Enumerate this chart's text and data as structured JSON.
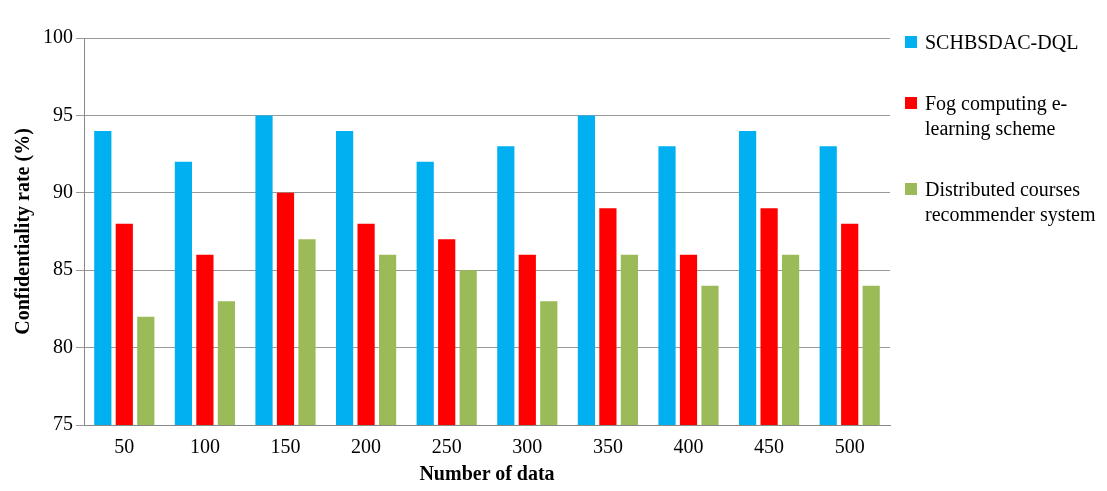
{
  "chart_data": {
    "type": "bar",
    "xlabel": "Number of data",
    "ylabel": "Confidentiality rate (%)",
    "categories": [
      "50",
      "100",
      "150",
      "200",
      "250",
      "300",
      "350",
      "400",
      "450",
      "500"
    ],
    "series": [
      {
        "name": "SCHBSDAC-DQL",
        "color": "#00b0f0",
        "values": [
          94,
          92,
          95,
          94,
          92,
          93,
          95,
          93,
          94,
          93
        ]
      },
      {
        "name": "Fog computing e-learning scheme",
        "color": "#ff0000",
        "values": [
          88,
          86,
          90,
          88,
          87,
          86,
          89,
          86,
          89,
          88
        ]
      },
      {
        "name": "Distributed courses recommender system",
        "color": "#9bbb59",
        "values": [
          82,
          83,
          87,
          86,
          85,
          83,
          86,
          84,
          86,
          84
        ]
      }
    ],
    "ylim": [
      75,
      100
    ],
    "yticks": [
      75,
      80,
      85,
      90,
      95,
      100
    ],
    "grid": "y",
    "legend": "right"
  }
}
